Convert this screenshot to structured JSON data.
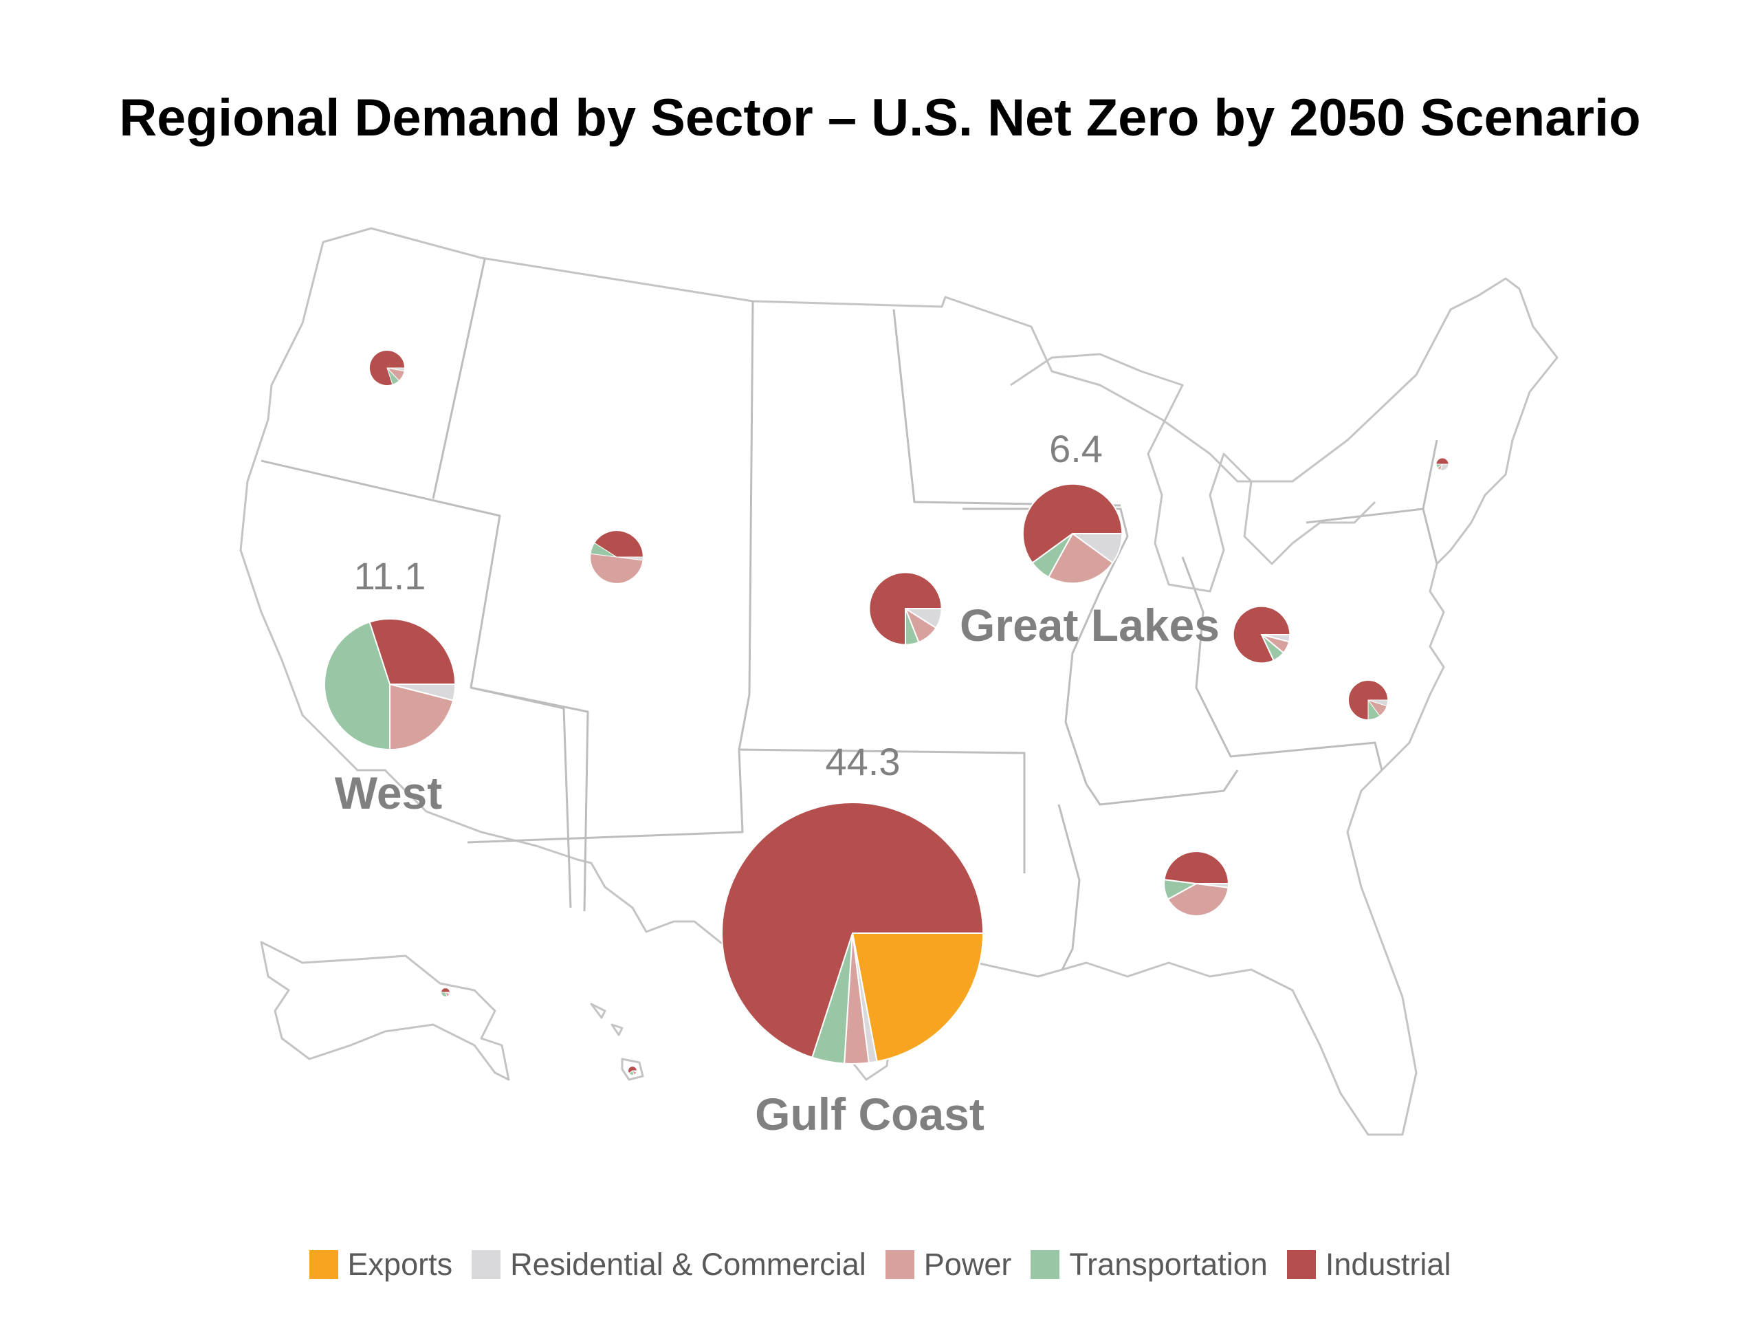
{
  "title": "Regional Demand by Sector – U.S. Net Zero by 2050 Scenario",
  "colors": {
    "exports": "#f7a520",
    "residential_commercial": "#d9d9dc",
    "power": "#d7a29e",
    "transportation": "#99c7a6",
    "industrial": "#b44f4e",
    "map_lines": "#bdbdbd",
    "label_gray": "#808080"
  },
  "legend": [
    {
      "key": "exports",
      "label": "Exports"
    },
    {
      "key": "residential_commercial",
      "label": "Residential & Commercial"
    },
    {
      "key": "power",
      "label": "Power"
    },
    {
      "key": "transportation",
      "label": "Transportation"
    },
    {
      "key": "industrial",
      "label": "Industrial"
    }
  ],
  "region_labels": {
    "west": "West",
    "great_lakes": "Great Lakes",
    "gulf_coast": "Gulf Coast"
  },
  "chart_data": {
    "type": "pie",
    "title": "Regional Demand by Sector – U.S. Net Zero by 2050 Scenario",
    "sectors": [
      "Exports",
      "Residential & Commercial",
      "Power",
      "Transportation",
      "Industrial"
    ],
    "regions": [
      {
        "id": "gulf_coast",
        "name": "Gulf Coast",
        "total": 44.3,
        "total_label": "44.3",
        "shares": {
          "exports": 0.22,
          "residential_commercial": 0.01,
          "power": 0.03,
          "transportation": 0.04,
          "industrial": 0.7
        }
      },
      {
        "id": "west",
        "name": "West",
        "total": 11.1,
        "total_label": "11.1",
        "shares": {
          "exports": 0,
          "residential_commercial": 0.04,
          "power": 0.21,
          "transportation": 0.45,
          "industrial": 0.3
        }
      },
      {
        "id": "great_lakes",
        "name": "Great Lakes",
        "total": 6.4,
        "total_label": "6.4",
        "shares": {
          "exports": 0,
          "residential_commercial": 0.1,
          "power": 0.23,
          "transportation": 0.07,
          "industrial": 0.6
        }
      },
      {
        "id": "northwest",
        "total": 0.8,
        "shares": {
          "exports": 0,
          "residential_commercial": 0.03,
          "power": 0.1,
          "transportation": 0.07,
          "industrial": 0.8
        }
      },
      {
        "id": "mountain",
        "total": 1.8,
        "shares": {
          "exports": 0,
          "residential_commercial": 0.02,
          "power": 0.5,
          "transportation": 0.07,
          "industrial": 0.41
        }
      },
      {
        "id": "central",
        "total": 3.4,
        "shares": {
          "exports": 0,
          "residential_commercial": 0.09,
          "power": 0.1,
          "transportation": 0.06,
          "industrial": 0.75
        }
      },
      {
        "id": "ohio_valley",
        "total": 2.1,
        "shares": {
          "exports": 0,
          "residential_commercial": 0.04,
          "power": 0.07,
          "transportation": 0.07,
          "industrial": 0.82
        }
      },
      {
        "id": "mid_atlantic",
        "total": 1.0,
        "shares": {
          "exports": 0,
          "residential_commercial": 0.05,
          "power": 0.1,
          "transportation": 0.1,
          "industrial": 0.75
        }
      },
      {
        "id": "southeast",
        "total": 2.7,
        "shares": {
          "exports": 0,
          "residential_commercial": 0.02,
          "power": 0.4,
          "transportation": 0.1,
          "industrial": 0.48
        }
      },
      {
        "id": "northeast",
        "total": 0.1,
        "shares": {
          "exports": 0,
          "residential_commercial": 0.3,
          "power": 0.1,
          "transportation": 0.1,
          "industrial": 0.5
        }
      },
      {
        "id": "alaska",
        "total": 0.05,
        "shares": {
          "exports": 0,
          "residential_commercial": 0.05,
          "power": 0.15,
          "transportation": 0.3,
          "industrial": 0.5
        }
      },
      {
        "id": "hawaii",
        "total": 0.05,
        "shares": {
          "exports": 0,
          "residential_commercial": 0.05,
          "power": 0.15,
          "transportation": 0.2,
          "industrial": 0.6
        }
      }
    ]
  }
}
